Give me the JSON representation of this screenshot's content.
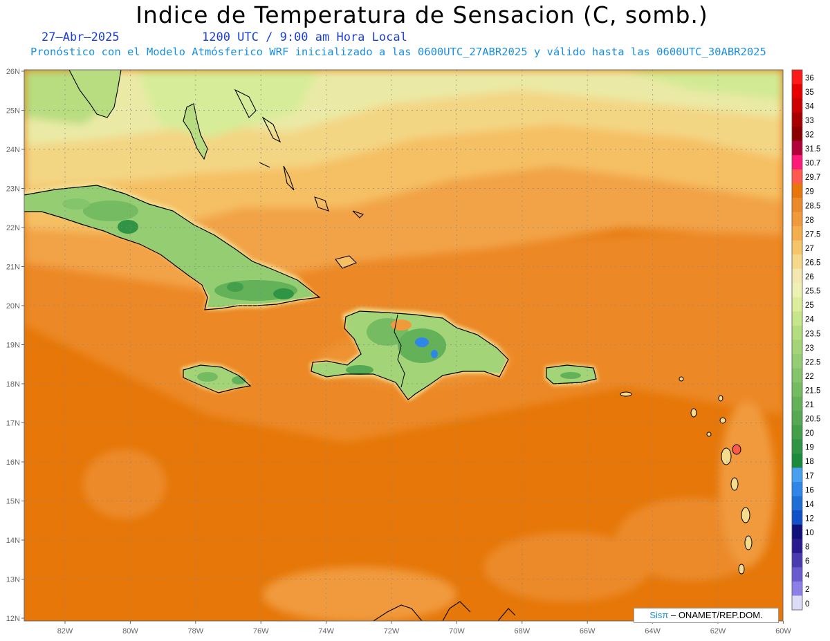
{
  "title": "Indice de Temperatura de Sensacion (C, somb.)",
  "date_label": "27–Abr–2025",
  "time_label": "1200 UTC / 9:00 am Hora Local",
  "forecast_label": "Pronóstico con el Modelo Atmósferico WRF inicializado a las 0600UTC_27ABR2025 y válido hasta las  0600UTC_30ABR2025",
  "credit": {
    "sis": "Sisπ",
    "org": " – ONAMET/REP.DOM."
  },
  "lat_ticks": [
    "26N",
    "25N",
    "24N",
    "23N",
    "22N",
    "21N",
    "20N",
    "19N",
    "18N",
    "17N",
    "16N",
    "15N",
    "14N",
    "13N",
    "12N"
  ],
  "lon_ticks": [
    "82W",
    "80W",
    "78W",
    "76W",
    "74W",
    "72W",
    "70W",
    "68W",
    "66W",
    "64W",
    "62W",
    "60W"
  ],
  "colorbar": {
    "labels": [
      "36",
      "35",
      "34",
      "33",
      "32",
      "31.5",
      "30.7",
      "29.7",
      "29",
      "28.5",
      "28",
      "27.5",
      "27",
      "26.5",
      "26",
      "25.5",
      "25",
      "24",
      "23.5",
      "23",
      "22.5",
      "22",
      "21.5",
      "21",
      "20.5",
      "20",
      "19",
      "18",
      "17",
      "16",
      "14",
      "12",
      "10",
      "8",
      "6",
      "4",
      "2",
      "0"
    ],
    "colors": [
      "#ff1a1a",
      "#e60000",
      "#cc0000",
      "#a80000",
      "#8c0000",
      "#b3003b",
      "#ff1a7a",
      "#ff5a4d",
      "#e8760a",
      "#ec8a2a",
      "#f09a3c",
      "#f3ae4e",
      "#f6c56a",
      "#f5d98a",
      "#f4e8b0",
      "#eef0b4",
      "#dcee9c",
      "#c6e68a",
      "#b3dd7e",
      "#a3d578",
      "#94cd72",
      "#84c46a",
      "#74bb62",
      "#63b25a",
      "#54a952",
      "#449f4a",
      "#2f9443",
      "#1a8a3b",
      "#4aa0f0",
      "#2e86e8",
      "#1e6ed8",
      "#1050c8",
      "#10107a",
      "#2a1a90",
      "#4a3ab0",
      "#6a5ad0",
      "#8a80e6",
      "#dcdcf6"
    ]
  },
  "map_colors": {
    "ocean": "#e8760a",
    "land_cool": "#3f9f4c",
    "coast": "#000000",
    "grid": "#888888"
  }
}
